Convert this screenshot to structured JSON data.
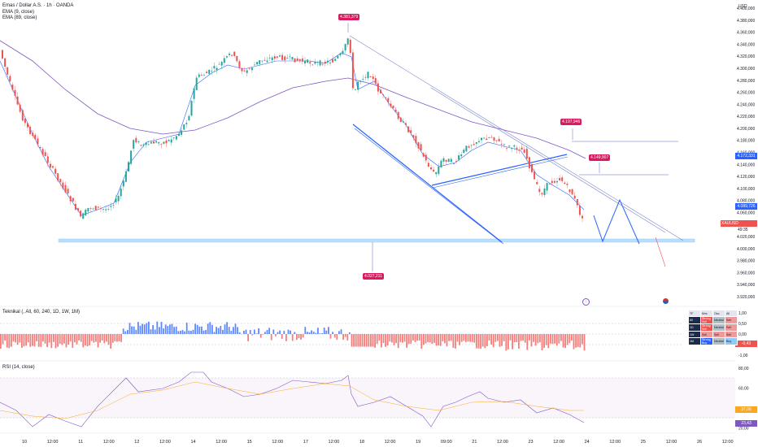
{
  "chart_data": {
    "type": "candlestick",
    "title": "Emas / Dollar A.S. · 1h · OANDA",
    "currency": "USD",
    "indicators": [
      "EMA (9, close)",
      "EMA (89, close)"
    ],
    "y_axis": {
      "ticks": [
        "4.400,000",
        "4.380,000",
        "4.360,000",
        "4.340,000",
        "4.320,000",
        "4.300,000",
        "4.280,000",
        "4.260,000",
        "4.240,000",
        "4.220,000",
        "4.200,000",
        "4.180,000",
        "4.160,000",
        "4.140,000",
        "4.120,000",
        "4.100,000",
        "4.080,000",
        "4.060,000",
        "4.040,000",
        "4.020,000",
        "4.000,000",
        "3.980,000",
        "3.960,000",
        "3.940,000",
        "3.920,000"
      ],
      "range": [
        3920,
        4400
      ]
    },
    "x_axis": {
      "ticks": [
        "10",
        "12:00",
        "11",
        "12:00",
        "12",
        "12:00",
        "14",
        "12:00",
        "15",
        "12:00",
        "17",
        "12:00",
        "18",
        "12:00",
        "19",
        "09:00",
        "21",
        "12:00",
        "23",
        "12:00",
        "24",
        "12:00",
        "25",
        "12:00",
        "26",
        "12:00"
      ]
    },
    "annotations": {
      "high": "4.381,379",
      "low": "4.027,211",
      "level1": "4.197,946",
      "level2": "4.149,907"
    },
    "price_labels": {
      "ema_fast": "4.172,331",
      "ema_slow": "4.089,726",
      "xauusd": "XAUUSD",
      "last": "4.058,160",
      "countdown": "49:35"
    },
    "teknikal": {
      "title": "Teknikal (, All, 60, 240, 1D, 1W, 1M)",
      "ticks": [
        "1,00",
        "0,50",
        "0,00",
        "-0,50",
        "-1,00"
      ],
      "current": "-0,43",
      "table": {
        "header": [
          "TF",
          "Mvs",
          "Osc.",
          "All"
        ],
        "rows": [
          [
            "60",
            "Strong Sell",
            "Neutral",
            "Sell"
          ],
          [
            "1D",
            "Strong Sell",
            "Neutral",
            "Sell"
          ],
          [
            "1W",
            "Sell",
            "Sell",
            "Sell"
          ],
          [
            "1M",
            "Strong Buy",
            "Neutral",
            "Buy"
          ]
        ]
      }
    },
    "rsi": {
      "title": "RSI (14, close)",
      "ticks": [
        "80,00",
        "60,00",
        "40,00",
        "20,00"
      ],
      "value1": "37,06",
      "value2": "23,43"
    },
    "colors": {
      "up": "#26a69a",
      "down": "#ef5350",
      "ema_fast": "#2962ff",
      "ema_slow": "#7e57c2",
      "channel": "#2962ff",
      "annotation": "#d81b60",
      "rsi": "#7e57c2"
    }
  }
}
